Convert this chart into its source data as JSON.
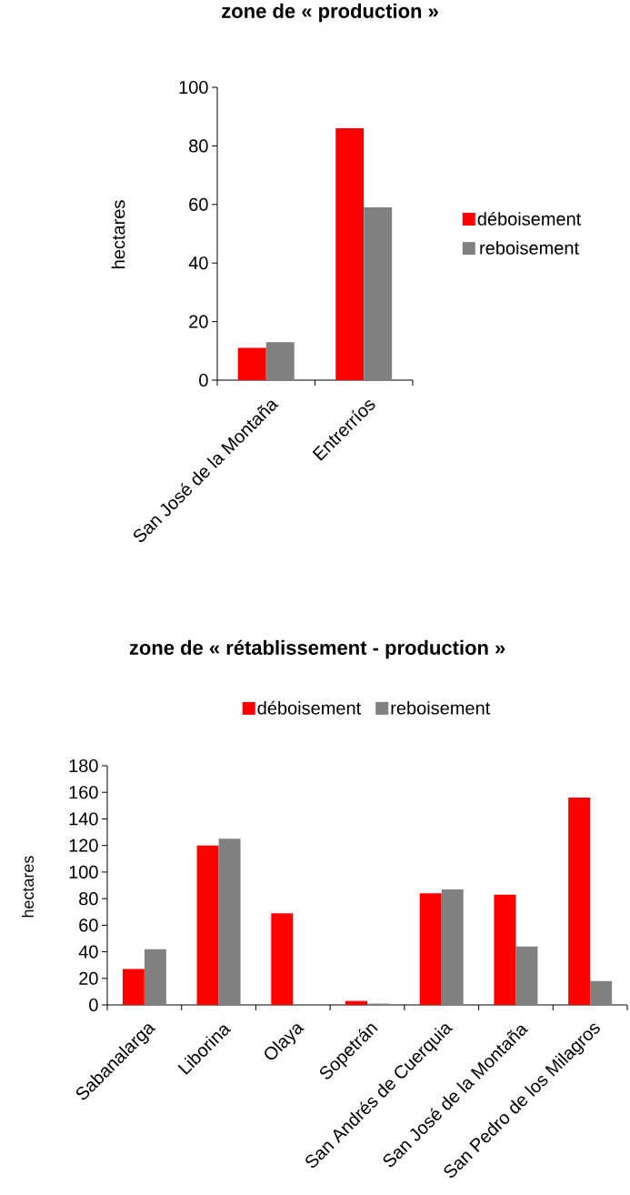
{
  "chart_data": [
    {
      "type": "bar",
      "title": "zone de « production »",
      "ylabel": "hectares",
      "categories": [
        "San José de la Montaña",
        "Entrerríos"
      ],
      "series": [
        {
          "name": "déboisement",
          "color": "#ff0000",
          "values": [
            11,
            86
          ]
        },
        {
          "name": "reboisement",
          "color": "#808080",
          "values": [
            13,
            59
          ]
        }
      ],
      "ylim": [
        0,
        100
      ],
      "yticks": [
        0,
        20,
        40,
        60,
        80,
        100
      ],
      "legend": "right"
    },
    {
      "type": "bar",
      "title": "zone de « rétablissement - production »",
      "ylabel": "hectares",
      "categories": [
        "Sabanalarga",
        "Liborina",
        "Olaya",
        "Sopetrán",
        "San Andrés de Cuerquia",
        "San José de la Montaña",
        "San Pedro de los Milagros"
      ],
      "series": [
        {
          "name": "déboisement",
          "color": "#ff0000",
          "values": [
            27,
            120,
            69,
            3,
            84,
            83,
            156
          ]
        },
        {
          "name": "reboisement",
          "color": "#808080",
          "values": [
            42,
            125,
            null,
            1,
            87,
            44,
            18
          ]
        }
      ],
      "ylim": [
        0,
        180
      ],
      "yticks": [
        0,
        20,
        40,
        60,
        80,
        100,
        120,
        140,
        160,
        180
      ],
      "legend": "top"
    }
  ]
}
